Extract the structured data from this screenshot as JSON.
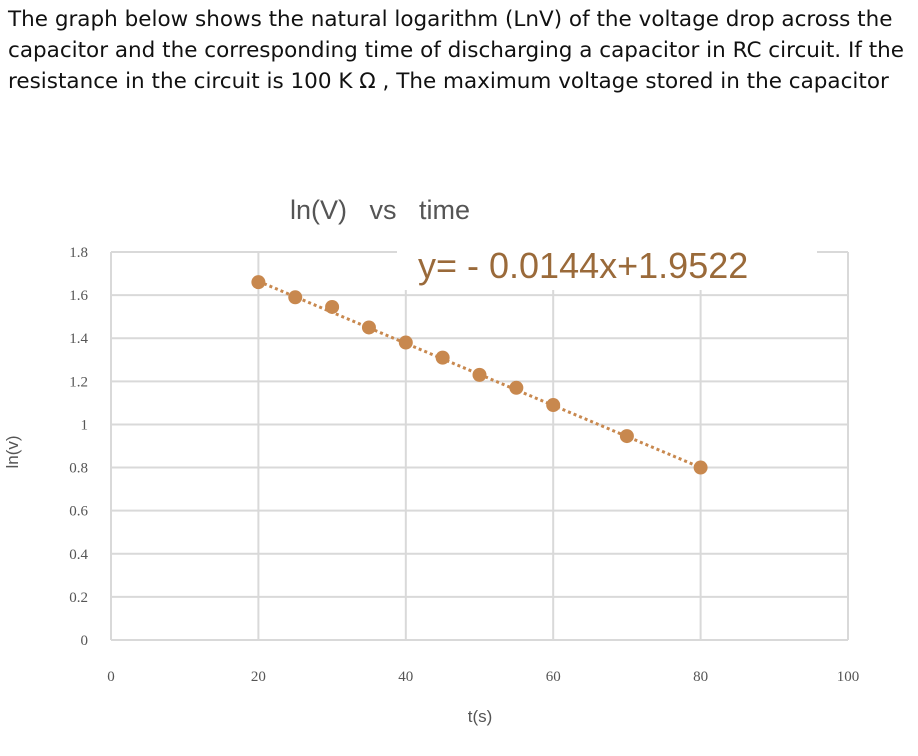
{
  "question": "The graph below shows the natural logarithm (LnV) of the voltage drop across the capacitor and the corresponding time of discharging a capacitor in RC circuit. If the resistance in the circuit is 100 K Ω , The maximum voltage stored in the capacitor",
  "chart_data": {
    "type": "scatter",
    "title": "ln(V)   vs   time",
    "xlabel": "t(s)",
    "ylabel": "ln(v)",
    "xlim": [
      0,
      100
    ],
    "ylim": [
      0,
      1.8
    ],
    "xticks": [
      "0",
      "20",
      "40",
      "60",
      "80",
      "100"
    ],
    "yticks": [
      "0",
      "0.2",
      "0.4",
      "0.6",
      "0.8",
      "1",
      "1.2",
      "1.4",
      "1.6",
      "1.8"
    ],
    "grid": true,
    "trendline": {
      "style": "dotted",
      "slope": -0.0144,
      "intercept": 1.9522,
      "label": "y= - 0.0144x+1.9522"
    },
    "points": [
      {
        "x": 20,
        "y": 1.66
      },
      {
        "x": 25,
        "y": 1.59
      },
      {
        "x": 30,
        "y": 1.545
      },
      {
        "x": 35,
        "y": 1.45
      },
      {
        "x": 40,
        "y": 1.38
      },
      {
        "x": 45,
        "y": 1.31
      },
      {
        "x": 50,
        "y": 1.23
      },
      {
        "x": 55,
        "y": 1.17
      },
      {
        "x": 60,
        "y": 1.09
      },
      {
        "x": 70,
        "y": 0.946
      },
      {
        "x": 80,
        "y": 0.8
      }
    ],
    "colors": {
      "marker": "#c8884e",
      "grid": "#d9d9d9",
      "text": "#555555"
    }
  }
}
